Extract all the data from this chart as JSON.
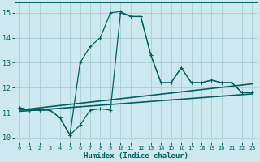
{
  "xlabel": "Humidex (Indice chaleur)",
  "xlim": [
    -0.5,
    23.5
  ],
  "ylim": [
    9.8,
    15.4
  ],
  "yticks": [
    10,
    11,
    12,
    13,
    14,
    15
  ],
  "xticks": [
    0,
    1,
    2,
    3,
    4,
    5,
    6,
    7,
    8,
    9,
    10,
    11,
    12,
    13,
    14,
    15,
    16,
    17,
    18,
    19,
    20,
    21,
    22,
    23
  ],
  "bg_color": "#cde8ee",
  "grid_color": "#aacdd6",
  "line_color": "#006060",
  "curve1_x": [
    0,
    1,
    2,
    3,
    4,
    5,
    6,
    7,
    8,
    9,
    10,
    11,
    12,
    13,
    14,
    15,
    16,
    17,
    18,
    19,
    20,
    21,
    22,
    23
  ],
  "curve1_y": [
    11.2,
    11.1,
    11.1,
    11.1,
    10.8,
    10.1,
    10.5,
    11.1,
    11.15,
    11.1,
    15.0,
    14.85,
    14.85,
    13.3,
    12.2,
    12.2,
    12.8,
    12.2,
    12.2,
    12.3,
    12.2,
    12.2,
    11.8,
    11.8
  ],
  "curve2_x": [
    0,
    1,
    2,
    3,
    4,
    5,
    6,
    7,
    8,
    9,
    10,
    11,
    12,
    13,
    14,
    15,
    16,
    17,
    18,
    19,
    20,
    21,
    22,
    23
  ],
  "curve2_y": [
    11.2,
    11.1,
    11.1,
    11.1,
    10.8,
    10.1,
    13.0,
    13.65,
    14.0,
    15.0,
    15.05,
    14.85,
    14.85,
    13.3,
    12.2,
    12.2,
    12.8,
    12.2,
    12.2,
    12.3,
    12.2,
    12.2,
    11.8,
    11.8
  ],
  "trend1_x": [
    0,
    23
  ],
  "trend1_y": [
    11.1,
    12.15
  ],
  "trend2_x": [
    0,
    23
  ],
  "trend2_y": [
    11.05,
    11.75
  ],
  "lw": 0.9,
  "marker_size": 2.5
}
